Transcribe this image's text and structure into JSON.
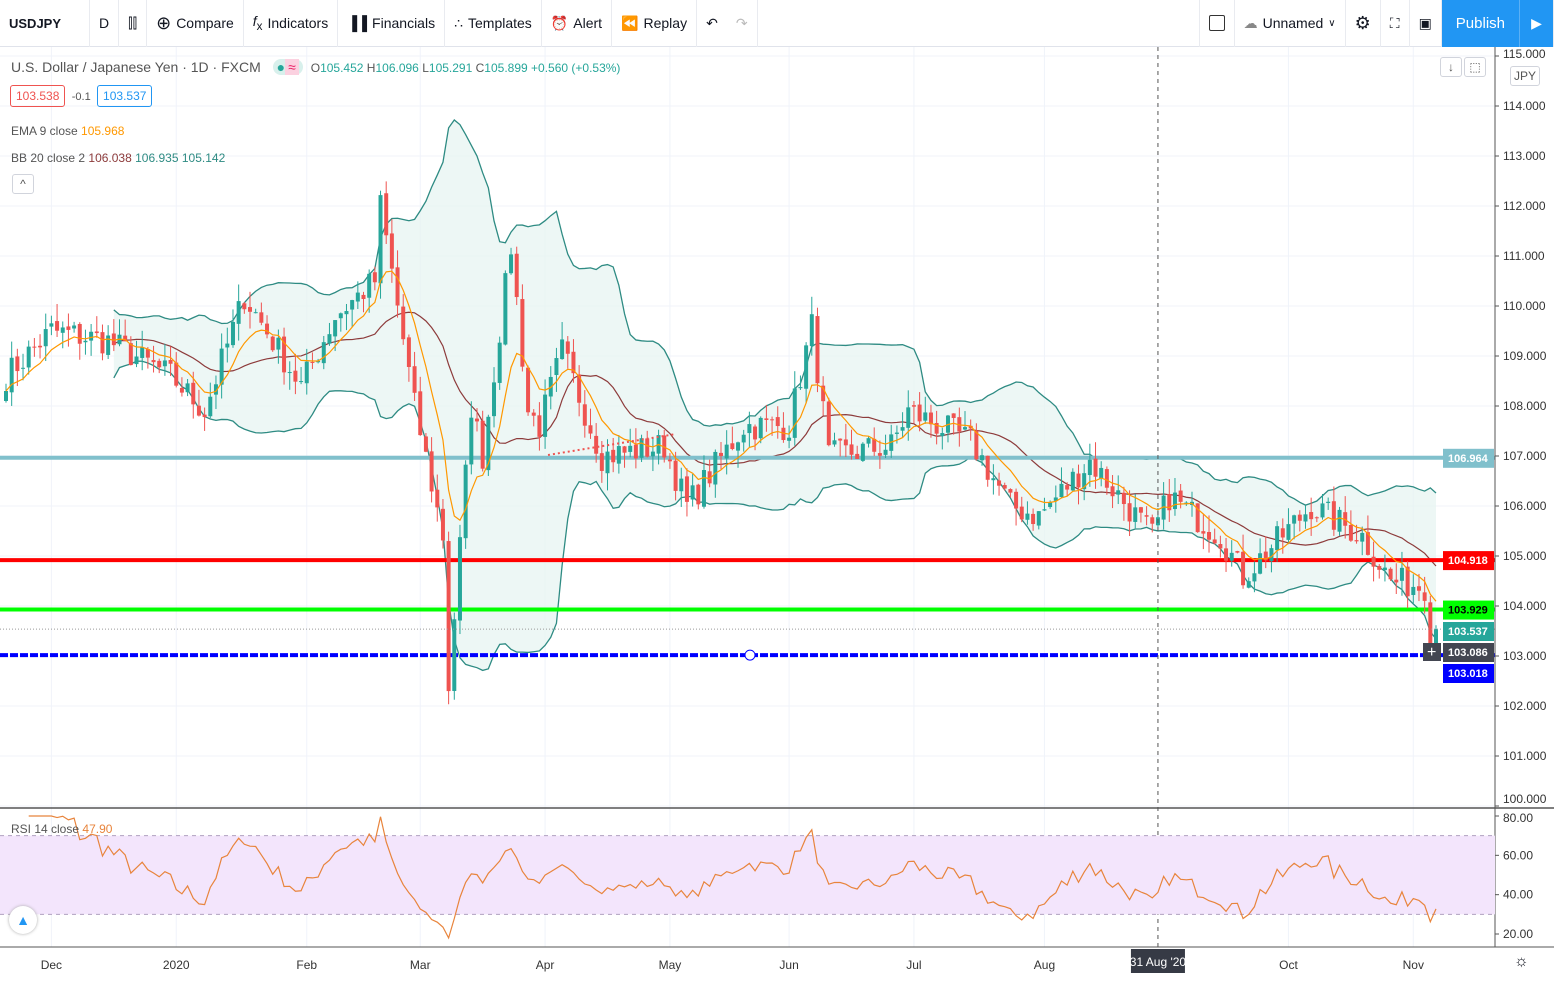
{
  "toolbar": {
    "symbol": "USDJPY",
    "interval": "D",
    "compare": "Compare",
    "indicators": "Indicators",
    "financials": "Financials",
    "templates": "Templates",
    "alert": "Alert",
    "replay": "Replay",
    "layout_name": "Unnamed",
    "publish": "Publish"
  },
  "legend": {
    "title": "U.S. Dollar / Japanese Yen · 1D · FXCM",
    "o_label": "O",
    "o": "105.452",
    "h_label": "H",
    "h": "106.096",
    "l_label": "L",
    "l": "105.291",
    "c_label": "C",
    "c": "105.899",
    "change": "+0.560 (+0.53%)",
    "sell": "103.538",
    "spread": "-0.1",
    "buy": "103.537",
    "ema_label": "EMA 9 close",
    "ema_value": "105.968",
    "bb_label": "BB 20 close 2",
    "bb_basis": "106.038",
    "bb_upper": "106.935",
    "bb_lower": "105.142",
    "rsi_label": "RSI 14 close",
    "rsi_value": "47.90",
    "collapse": "^",
    "currency": "JPY"
  },
  "colors": {
    "up": "#26a69a",
    "down": "#ef5350",
    "ema": "#ff9800",
    "bb_band": "#2e8b83",
    "bb_basis": "#8d3b3b",
    "rsi": "#e8843c",
    "line_teal": "#80c0cc",
    "line_red": "#ff0000",
    "line_green": "#00ff00",
    "line_blue": "#0000ff",
    "accent": "#2196f3"
  },
  "chart_data": {
    "type": "candlestick",
    "start_date": "2019-11-20",
    "end_date": "2020-11-06",
    "price_ylim": [
      100,
      115
    ],
    "price_ticks": [
      "115.000",
      "114.000",
      "113.000",
      "112.000",
      "111.000",
      "110.000",
      "109.000",
      "108.000",
      "107.000",
      "106.000",
      "105.000",
      "104.000",
      "103.000",
      "102.000",
      "101.000",
      "100.000"
    ],
    "rsi_ylim": [
      15,
      82
    ],
    "rsi_ticks": [
      "80.00",
      "60.00",
      "40.00",
      "20.00"
    ],
    "rsi_bands": [
      30,
      70
    ],
    "x_labels": [
      {
        "label": "Dec",
        "date": "2019-12-02"
      },
      {
        "label": "2020",
        "date": "2020-01-01"
      },
      {
        "label": "Feb",
        "date": "2020-02-03"
      },
      {
        "label": "Mar",
        "date": "2020-03-02"
      },
      {
        "label": "Apr",
        "date": "2020-04-01"
      },
      {
        "label": "May",
        "date": "2020-05-01"
      },
      {
        "label": "Jun",
        "date": "2020-06-01"
      },
      {
        "label": "Jul",
        "date": "2020-07-01"
      },
      {
        "label": "Aug",
        "date": "2020-08-03"
      },
      {
        "label": "Oct",
        "date": "2020-10-01"
      },
      {
        "label": "Nov",
        "date": "2020-11-02"
      }
    ],
    "crosshair": {
      "label": "31 Aug '20",
      "date": "2020-08-31"
    },
    "close_path": [
      [
        "2019-11-20",
        108.6
      ],
      [
        "2019-12-02",
        109.5
      ],
      [
        "2019-12-16",
        109.3
      ],
      [
        "2019-12-31",
        108.6
      ],
      [
        "2020-01-08",
        107.9
      ],
      [
        "2020-01-17",
        110.2
      ],
      [
        "2020-01-31",
        108.4
      ],
      [
        "2020-02-10",
        109.8
      ],
      [
        "2020-02-19",
        110.5
      ],
      [
        "2020-02-20",
        112.0
      ],
      [
        "2020-02-28",
        108.0
      ],
      [
        "2020-03-06",
        105.4
      ],
      [
        "2020-03-09",
        102.4
      ],
      [
        "2020-03-13",
        108.0
      ],
      [
        "2020-03-17",
        107.0
      ],
      [
        "2020-03-24",
        111.2
      ],
      [
        "2020-03-27",
        107.9
      ],
      [
        "2020-03-31",
        107.6
      ],
      [
        "2020-04-06",
        109.1
      ],
      [
        "2020-04-15",
        107.0
      ],
      [
        "2020-04-30",
        107.2
      ],
      [
        "2020-05-06",
        106.0
      ],
      [
        "2020-05-20",
        107.6
      ],
      [
        "2020-06-01",
        107.6
      ],
      [
        "2020-06-05",
        109.6
      ],
      [
        "2020-06-10",
        107.0
      ],
      [
        "2020-06-25",
        107.2
      ],
      [
        "2020-06-30",
        107.9
      ],
      [
        "2020-07-15",
        107.3
      ],
      [
        "2020-07-24",
        106.0
      ],
      [
        "2020-07-31",
        105.8
      ],
      [
        "2020-08-13",
        106.9
      ],
      [
        "2020-08-28",
        105.4
      ],
      [
        "2020-09-02",
        106.2
      ],
      [
        "2020-09-15",
        105.4
      ],
      [
        "2020-09-21",
        104.6
      ],
      [
        "2020-10-07",
        106.0
      ],
      [
        "2020-10-20",
        105.4
      ],
      [
        "2020-10-27",
        104.5
      ],
      [
        "2020-11-04",
        104.4
      ],
      [
        "2020-11-05",
        103.5
      ],
      [
        "2020-11-06",
        103.54
      ]
    ],
    "horizontal_lines": [
      {
        "price": 106.964,
        "label": "106.964",
        "color": "#80c0cc"
      },
      {
        "price": 104.918,
        "label": "104.918",
        "color": "#ff0000"
      },
      {
        "price": 103.929,
        "label": "103.929",
        "color": "#00ff00"
      },
      {
        "price": 103.018,
        "label": "103.018",
        "color": "#0000ff"
      }
    ],
    "price_labels": [
      {
        "price": 103.537,
        "label": "103.537",
        "color": "#26a69a"
      },
      {
        "price": 103.086,
        "label": "103.086",
        "color": "#434651"
      }
    ]
  }
}
